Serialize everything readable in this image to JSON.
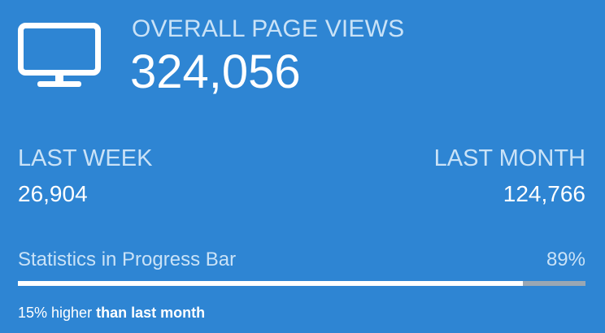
{
  "overall": {
    "icon": "monitor-icon",
    "label": "OVERALL PAGE VIEWS",
    "value": "324,056"
  },
  "last_week": {
    "label": "LAST WEEK",
    "value": "26,904"
  },
  "last_month": {
    "label": "LAST MONTH",
    "value": "124,766"
  },
  "progress": {
    "title": "Statistics in Progress Bar",
    "percent_text": "89%",
    "fraction": 0.89
  },
  "footer": {
    "prefix": "15% higher",
    "emphasis": "than last month"
  },
  "colors": {
    "background": "#2e85d3",
    "label": "#c9e2f7",
    "value": "#ffffff",
    "track": "#9aa7b3",
    "fill": "#ffffff"
  }
}
